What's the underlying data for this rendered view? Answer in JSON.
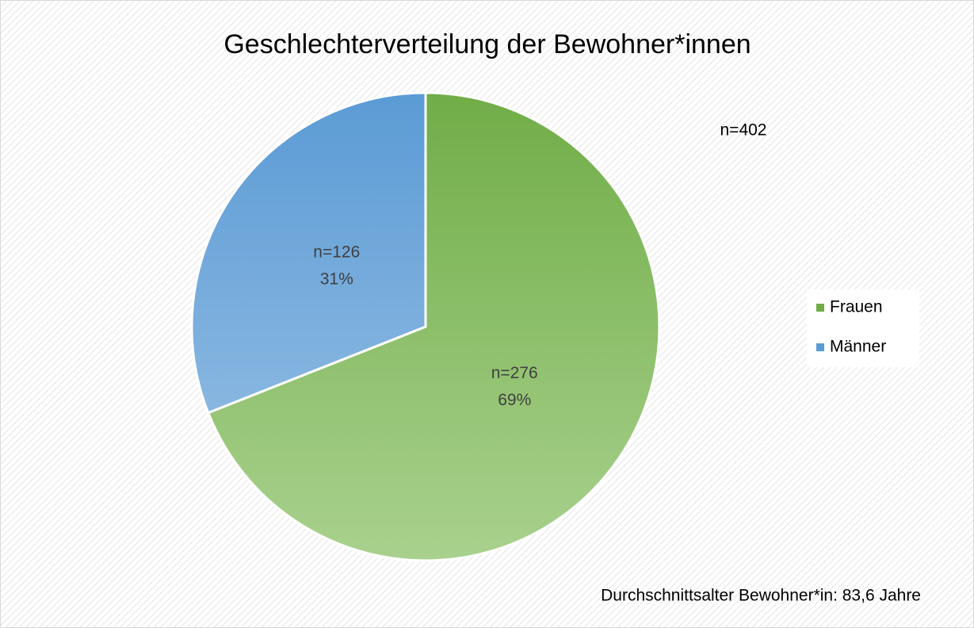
{
  "chart_data": {
    "type": "pie",
    "title": "Geschlechterverteilung  der Bewohner*innen",
    "categories": [
      "Frauen",
      "Männer"
    ],
    "values": [
      69,
      31
    ],
    "value_labels": [
      "69%",
      "31%"
    ],
    "count_labels": [
      "n=276",
      "n=126"
    ],
    "colors": [
      [
        "#70ad47",
        "#a9d18e"
      ],
      [
        "#5b9bd5",
        "#9dc3e6"
      ]
    ],
    "annotations": [
      "n=402",
      "Durchschnittsalter Bewohner*in: 83,6 Jahre"
    ],
    "legend": "right"
  }
}
